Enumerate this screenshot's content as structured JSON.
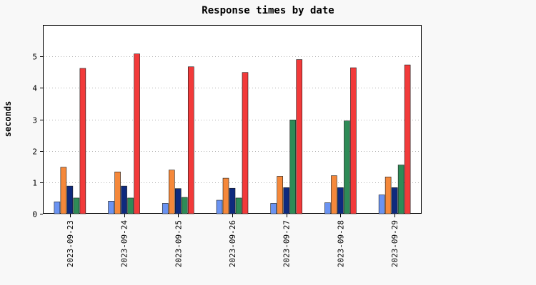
{
  "chart_data": {
    "type": "bar",
    "title": "Response times by date",
    "xlabel": "",
    "ylabel": "seconds",
    "ylim": [
      0,
      6
    ],
    "yticks": [
      0,
      1,
      2,
      3,
      4,
      5
    ],
    "grid": "horizontal dotted",
    "legend": "none",
    "categories": [
      "2023-09-23",
      "2023-09-24",
      "2023-09-25",
      "2023-09-26",
      "2023-09-27",
      "2023-09-28",
      "2023-09-29"
    ],
    "series": [
      {
        "color": "#6a93f2",
        "values": [
          0.38,
          0.4,
          0.33,
          0.43,
          0.33,
          0.35,
          0.6
        ]
      },
      {
        "color": "#f5883a",
        "values": [
          1.48,
          1.33,
          1.39,
          1.13,
          1.19,
          1.21,
          1.17
        ]
      },
      {
        "color": "#0e2a7e",
        "values": [
          0.88,
          0.88,
          0.8,
          0.81,
          0.83,
          0.83,
          0.83
        ]
      },
      {
        "color": "#2e8b57",
        "values": [
          0.5,
          0.5,
          0.52,
          0.5,
          2.98,
          2.95,
          1.55
        ]
      },
      {
        "color": "#f23a3a",
        "values": [
          4.62,
          5.08,
          4.67,
          4.49,
          4.9,
          4.64,
          4.73
        ]
      }
    ]
  }
}
